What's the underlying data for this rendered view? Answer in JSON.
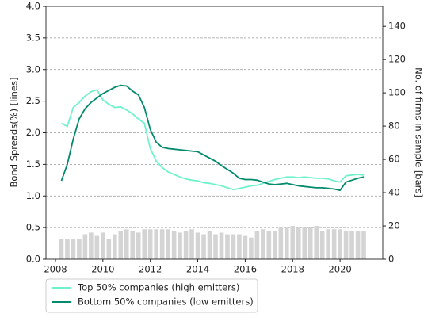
{
  "chart_data": {
    "type": "line",
    "y_label": "Bond Spreads(%) [lines]",
    "y2_label": "No. of firms in sample [bars]",
    "x": [
      2008.25,
      2008.5,
      2008.75,
      2009,
      2009.25,
      2009.5,
      2009.75,
      2010,
      2010.25,
      2010.5,
      2010.75,
      2011,
      2011.25,
      2011.5,
      2011.75,
      2012,
      2012.25,
      2012.5,
      2012.75,
      2013,
      2013.25,
      2013.5,
      2013.75,
      2014,
      2014.25,
      2014.5,
      2014.75,
      2015,
      2015.25,
      2015.5,
      2015.75,
      2016,
      2016.25,
      2016.5,
      2016.75,
      2017,
      2017.25,
      2017.5,
      2017.75,
      2018,
      2018.25,
      2018.5,
      2018.75,
      2019,
      2019.25,
      2019.5,
      2019.75,
      2020,
      2020.25,
      2020.5,
      2020.75,
      2021
    ],
    "series": [
      {
        "name": "Top 50% companies (high emitters)",
        "color": "#6ff2cc",
        "values": [
          2.15,
          2.1,
          2.4,
          2.48,
          2.58,
          2.65,
          2.68,
          2.52,
          2.45,
          2.4,
          2.41,
          2.36,
          2.3,
          2.22,
          2.15,
          1.75,
          1.55,
          1.45,
          1.38,
          1.34,
          1.3,
          1.27,
          1.25,
          1.24,
          1.21,
          1.2,
          1.18,
          1.16,
          1.13,
          1.1,
          1.12,
          1.14,
          1.16,
          1.17,
          1.2,
          1.23,
          1.26,
          1.28,
          1.3,
          1.3,
          1.29,
          1.3,
          1.29,
          1.28,
          1.28,
          1.27,
          1.24,
          1.22,
          1.32,
          1.33,
          1.34,
          1.33
        ]
      },
      {
        "name": "Bottom 50% companies (low emitters)",
        "color": "#048a6c",
        "values": [
          1.24,
          1.5,
          1.9,
          2.22,
          2.38,
          2.48,
          2.55,
          2.62,
          2.67,
          2.72,
          2.75,
          2.74,
          2.66,
          2.6,
          2.4,
          2.05,
          1.85,
          1.77,
          1.75,
          1.74,
          1.73,
          1.72,
          1.71,
          1.7,
          1.65,
          1.6,
          1.55,
          1.48,
          1.42,
          1.36,
          1.28,
          1.26,
          1.26,
          1.25,
          1.22,
          1.19,
          1.18,
          1.19,
          1.2,
          1.18,
          1.16,
          1.15,
          1.14,
          1.13,
          1.13,
          1.12,
          1.11,
          1.09,
          1.22,
          1.25,
          1.28,
          1.3
        ]
      },
      {
        "type": "bar",
        "axis": "y2",
        "color": "#d4d4d4",
        "values": [
          12,
          12,
          12,
          12,
          15,
          16,
          14,
          16,
          12,
          15,
          17,
          18,
          17,
          16,
          18,
          18,
          18,
          18,
          18,
          17,
          16,
          17,
          18,
          16,
          15,
          17,
          15,
          16,
          15,
          15,
          15,
          14,
          13,
          17,
          18,
          17,
          17,
          19,
          19,
          20,
          19,
          19,
          19,
          20,
          17,
          18,
          18,
          18,
          17,
          17,
          17,
          17
        ]
      }
    ],
    "xlim": [
      2007.6,
      2021.8
    ],
    "xticks": [
      2008,
      2010,
      2012,
      2014,
      2016,
      2018,
      2020
    ],
    "ylim": [
      0,
      4
    ],
    "yticks": [
      {
        "value": 0,
        "label": "0.0"
      },
      {
        "value": 0.5,
        "label": "0.5"
      },
      {
        "value": 1,
        "label": "1.0"
      },
      {
        "value": 1.5,
        "label": "1.5"
      },
      {
        "value": 2,
        "label": "2.0"
      },
      {
        "value": 2.5,
        "label": "2.5"
      },
      {
        "value": 3,
        "label": "3.0"
      },
      {
        "value": 3.5,
        "label": "3.5"
      },
      {
        "value": 4,
        "label": "4.0"
      }
    ],
    "y2lim": [
      0,
      152
    ],
    "y2ticks": [
      0,
      20,
      40,
      60,
      80,
      100,
      120,
      140
    ],
    "grid": true,
    "legend": "below-left"
  }
}
